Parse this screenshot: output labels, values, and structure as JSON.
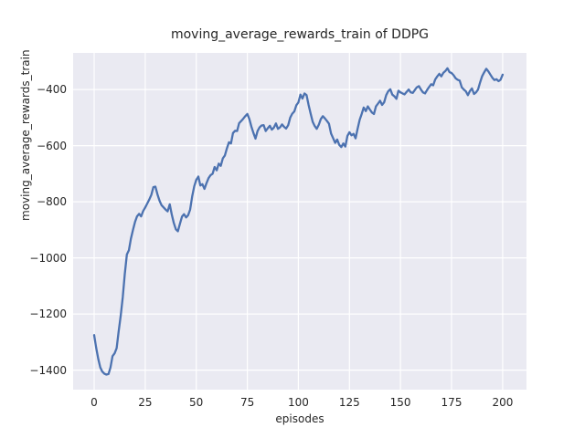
{
  "chart_data": {
    "type": "line",
    "title": "moving_average_rewards_train of DDPG",
    "xlabel": "episodes",
    "ylabel": "moving_average_rewards_train",
    "x_ticks": [
      0,
      25,
      50,
      75,
      100,
      125,
      150,
      175,
      200
    ],
    "y_ticks": [
      -400,
      -600,
      -800,
      -1000,
      -1200,
      -1400
    ],
    "xlim": [
      -10.3,
      211.7
    ],
    "ylim": [
      -1469.5,
      -269.5
    ],
    "grid": true,
    "legend": "none",
    "style": {
      "axes_bg": "#EAEAF2",
      "grid_color": "#FFFFFF",
      "line_color": "#4C72B0",
      "text_color": "#262626",
      "figure_bg": "#FFFFFF"
    },
    "series": [
      {
        "name": "moving_average_rewards_train",
        "x": [
          0,
          1,
          2,
          3,
          4,
          5,
          6,
          7,
          8,
          9,
          10,
          11,
          12,
          13,
          14,
          15,
          16,
          17,
          18,
          19,
          20,
          21,
          22,
          23,
          24,
          25,
          26,
          27,
          28,
          29,
          30,
          31,
          32,
          33,
          34,
          35,
          36,
          37,
          38,
          39,
          40,
          41,
          42,
          43,
          44,
          45,
          46,
          47,
          48,
          49,
          50,
          51,
          52,
          53,
          54,
          55,
          56,
          57,
          58,
          59,
          60,
          61,
          62,
          63,
          64,
          65,
          66,
          67,
          68,
          69,
          70,
          71,
          72,
          73,
          74,
          75,
          76,
          77,
          78,
          79,
          80,
          81,
          82,
          83,
          84,
          85,
          86,
          87,
          88,
          89,
          90,
          91,
          92,
          93,
          94,
          95,
          96,
          97,
          98,
          99,
          100,
          101,
          102,
          103,
          104,
          105,
          106,
          107,
          108,
          109,
          110,
          111,
          112,
          113,
          114,
          115,
          116,
          117,
          118,
          119,
          120,
          121,
          122,
          123,
          124,
          125,
          126,
          127,
          128,
          129,
          130,
          131,
          132,
          133,
          134,
          135,
          136,
          137,
          138,
          139,
          140,
          141,
          142,
          143,
          144,
          145,
          146,
          147,
          148,
          149,
          150,
          151,
          152,
          153,
          154,
          155,
          156,
          157,
          158,
          159,
          160,
          161,
          162,
          163,
          164,
          165,
          166,
          167,
          168,
          169,
          170,
          171,
          172,
          173,
          174,
          175,
          176,
          177,
          178,
          179,
          180,
          181,
          182,
          183,
          184,
          185,
          186,
          187,
          188,
          189,
          190,
          191,
          192,
          193,
          194,
          195,
          196,
          197,
          198,
          199,
          200
        ],
        "values": [
          -1275,
          -1320,
          -1360,
          -1390,
          -1405,
          -1413,
          -1416,
          -1414,
          -1390,
          -1350,
          -1340,
          -1322,
          -1262,
          -1205,
          -1140,
          -1058,
          -988,
          -973,
          -932,
          -900,
          -872,
          -852,
          -843,
          -852,
          -833,
          -820,
          -806,
          -792,
          -775,
          -748,
          -746,
          -774,
          -796,
          -812,
          -820,
          -828,
          -834,
          -809,
          -845,
          -875,
          -898,
          -905,
          -878,
          -853,
          -844,
          -856,
          -848,
          -828,
          -780,
          -745,
          -722,
          -710,
          -742,
          -737,
          -754,
          -734,
          -716,
          -705,
          -700,
          -676,
          -688,
          -664,
          -672,
          -645,
          -635,
          -610,
          -588,
          -592,
          -555,
          -547,
          -548,
          -520,
          -512,
          -504,
          -495,
          -487,
          -505,
          -532,
          -555,
          -575,
          -548,
          -535,
          -528,
          -527,
          -548,
          -538,
          -529,
          -543,
          -536,
          -521,
          -540,
          -535,
          -524,
          -533,
          -539,
          -527,
          -500,
          -486,
          -478,
          -456,
          -446,
          -418,
          -432,
          -414,
          -420,
          -455,
          -485,
          -515,
          -530,
          -540,
          -525,
          -505,
          -495,
          -503,
          -512,
          -522,
          -557,
          -573,
          -590,
          -578,
          -597,
          -605,
          -592,
          -603,
          -565,
          -552,
          -563,
          -558,
          -574,
          -540,
          -508,
          -487,
          -464,
          -477,
          -460,
          -471,
          -482,
          -487,
          -460,
          -450,
          -440,
          -455,
          -445,
          -420,
          -406,
          -399,
          -418,
          -424,
          -433,
          -404,
          -410,
          -414,
          -417,
          -408,
          -400,
          -410,
          -412,
          -402,
          -392,
          -388,
          -400,
          -410,
          -414,
          -402,
          -391,
          -381,
          -385,
          -364,
          -353,
          -344,
          -353,
          -340,
          -334,
          -324,
          -338,
          -341,
          -349,
          -360,
          -365,
          -368,
          -392,
          -400,
          -406,
          -420,
          -405,
          -396,
          -416,
          -410,
          -400,
          -374,
          -352,
          -338,
          -326,
          -335,
          -347,
          -358,
          -366,
          -363,
          -370,
          -365,
          -347
        ]
      }
    ]
  }
}
